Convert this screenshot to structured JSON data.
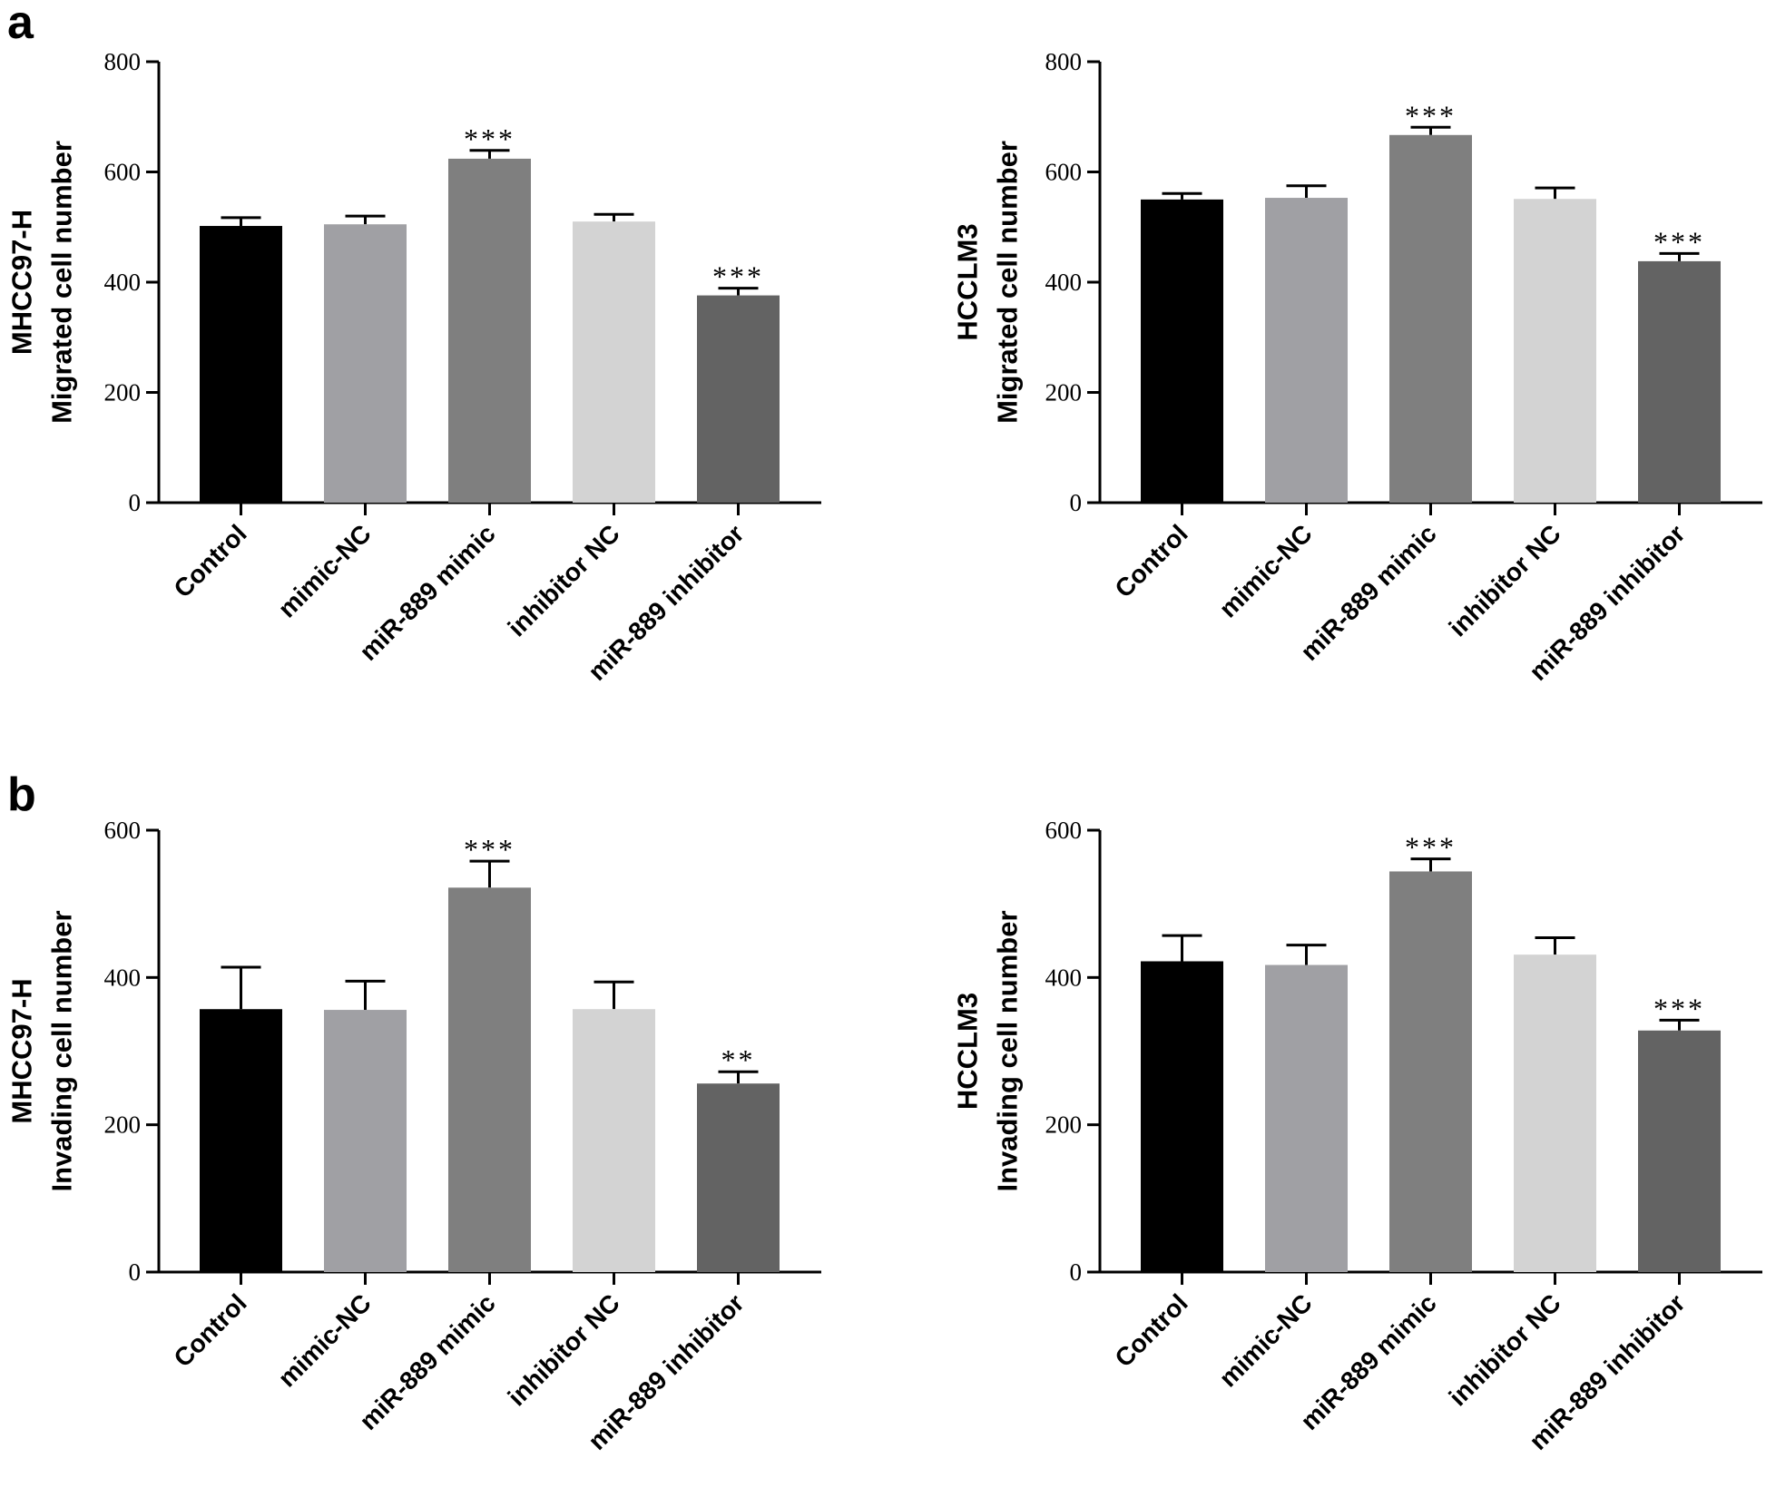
{
  "panels": [
    {
      "letter": "a"
    },
    {
      "letter": "b"
    }
  ],
  "chart_data": [
    {
      "type": "bar",
      "panel": "a",
      "ylabel_line1": "MHCC97-H",
      "ylabel_line2": "Migrated cell number",
      "ylim": [
        0,
        800
      ],
      "yticks": [
        "0",
        "200",
        "400",
        "600",
        "800"
      ],
      "categories": [
        "Control",
        "mimic-NC",
        "miR-889 mimic",
        "inhibitor NC",
        "miR-889 inhibitor"
      ],
      "values": [
        502,
        505,
        624,
        510,
        376
      ],
      "errors": [
        15,
        15,
        15,
        13,
        13
      ],
      "significance": [
        "",
        "",
        "***",
        "",
        "***"
      ],
      "colors": [
        "#000000",
        "#a0a0a4",
        "#7f7f7f",
        "#d3d3d3",
        "#636363"
      ]
    },
    {
      "type": "bar",
      "panel": "a",
      "ylabel_line1": "HCCLM3",
      "ylabel_line2": "Migrated cell number",
      "ylim": [
        0,
        800
      ],
      "yticks": [
        "0",
        "200",
        "400",
        "600",
        "800"
      ],
      "categories": [
        "Control",
        "mimic-NC",
        "miR-889 mimic",
        "inhibitor NC",
        "miR-889 inhibitor"
      ],
      "values": [
        550,
        553,
        667,
        551,
        438
      ],
      "errors": [
        11,
        22,
        14,
        20,
        14
      ],
      "significance": [
        "",
        "",
        "***",
        "",
        "***"
      ],
      "colors": [
        "#000000",
        "#a0a0a4",
        "#7f7f7f",
        "#d3d3d3",
        "#636363"
      ]
    },
    {
      "type": "bar",
      "panel": "b",
      "ylabel_line1": "MHCC97-H",
      "ylabel_line2": "Invading cell number",
      "ylim": [
        0,
        600
      ],
      "yticks": [
        "0",
        "200",
        "400",
        "600"
      ],
      "categories": [
        "Control",
        "mimic-NC",
        "miR-889 mimic",
        "inhibitor NC",
        "miR-889 inhibitor"
      ],
      "values": [
        357,
        356,
        522,
        357,
        256
      ],
      "errors": [
        57,
        39,
        36,
        37,
        16
      ],
      "significance": [
        "",
        "",
        "***",
        "",
        "**"
      ],
      "colors": [
        "#000000",
        "#a0a0a4",
        "#7f7f7f",
        "#d3d3d3",
        "#636363"
      ]
    },
    {
      "type": "bar",
      "panel": "b",
      "ylabel_line1": "HCCLM3",
      "ylabel_line2": "Invading cell number",
      "ylim": [
        0,
        600
      ],
      "yticks": [
        "0",
        "200",
        "400",
        "600"
      ],
      "categories": [
        "Control",
        "mimic-NC",
        "miR-889 mimic",
        "inhibitor NC",
        "miR-889 inhibitor"
      ],
      "values": [
        422,
        417,
        544,
        431,
        328
      ],
      "errors": [
        35,
        27,
        17,
        23,
        14
      ],
      "significance": [
        "",
        "",
        "***",
        "",
        "***"
      ],
      "colors": [
        "#000000",
        "#a0a0a4",
        "#7f7f7f",
        "#d3d3d3",
        "#636363"
      ]
    }
  ]
}
